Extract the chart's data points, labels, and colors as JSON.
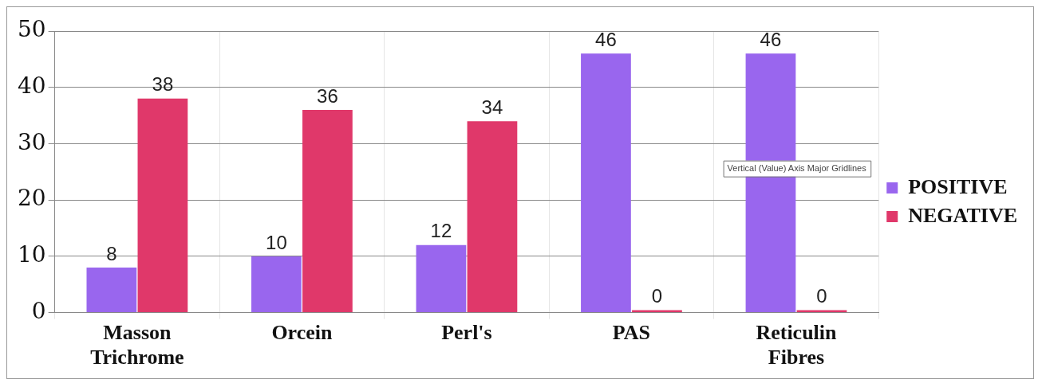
{
  "chart_data": {
    "type": "bar",
    "categories": [
      "Masson Trichrome",
      "Orcein",
      "Perl's",
      "PAS",
      "Reticulin Fibres"
    ],
    "series": [
      {
        "name": "POSITIVE",
        "color": "#9966ee",
        "values": [
          8,
          10,
          12,
          46,
          46
        ]
      },
      {
        "name": "NEGATIVE",
        "color": "#e0386a",
        "values": [
          38,
          36,
          34,
          0,
          0
        ]
      }
    ],
    "ylim": [
      0,
      50
    ],
    "yticks": [
      0,
      10,
      20,
      30,
      40,
      50
    ],
    "grid": true,
    "legend": "right",
    "data_labels": true,
    "annotations": [
      "Vertical (Value) Axis Major Gridlines"
    ]
  }
}
